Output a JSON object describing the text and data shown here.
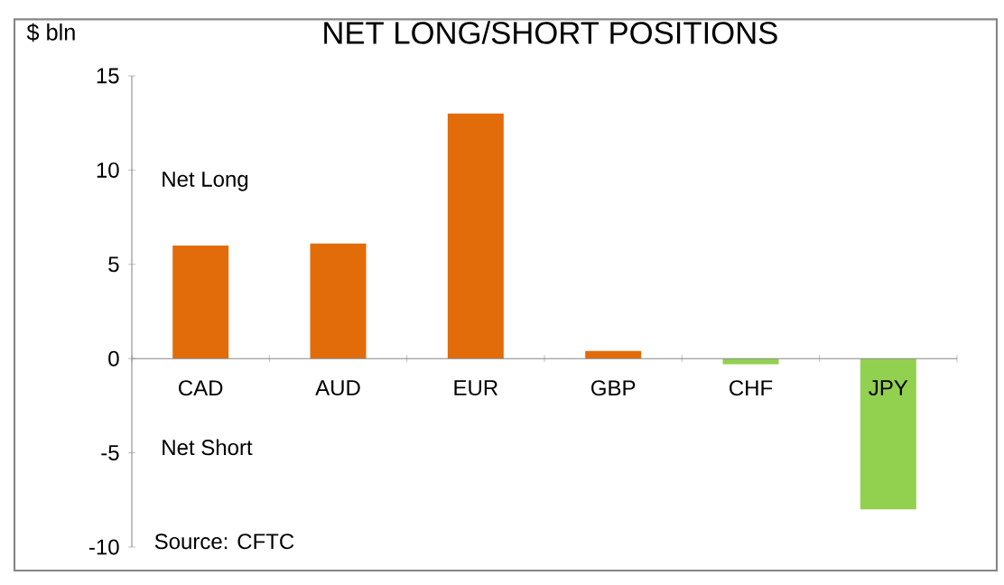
{
  "chart_data": {
    "type": "bar",
    "title": "NET LONG/SHORT POSITIONS",
    "ylabel": "$ bln",
    "categories": [
      "CAD",
      "AUD",
      "EUR",
      "GBP",
      "CHF",
      "JPY"
    ],
    "values": [
      6.0,
      6.1,
      13.0,
      0.4,
      -0.3,
      -8.0
    ],
    "colors": [
      "#e36c0a",
      "#e36c0a",
      "#e36c0a",
      "#e36c0a",
      "#92d050",
      "#92d050"
    ],
    "ylim": [
      -10,
      15
    ],
    "yticks": [
      -10,
      -5,
      0,
      5,
      10,
      15
    ],
    "annotations": [
      "Net Long",
      "Net Short",
      "Source: CFTC"
    ]
  }
}
